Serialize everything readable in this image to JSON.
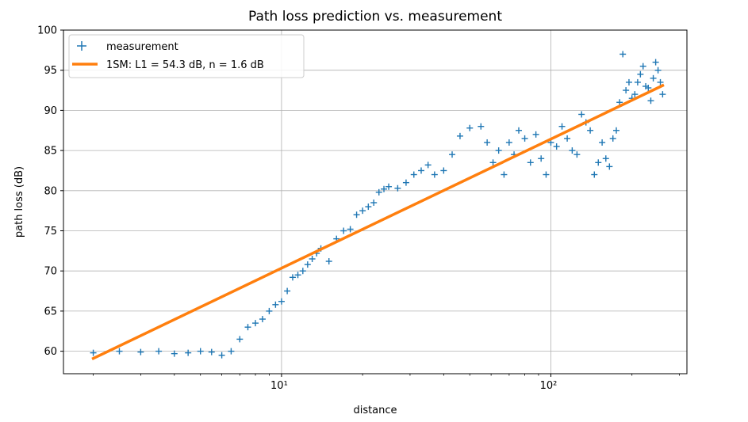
{
  "chart_data": {
    "type": "scatter",
    "title": "Path loss prediction vs. measurement",
    "xlabel": "distance",
    "ylabel": "path loss (dB)",
    "x_scale": "log",
    "xlim": [
      1.55,
      320
    ],
    "ylim": [
      57.2,
      100
    ],
    "grid": true,
    "legend_position": "top-left",
    "x_tick_labels": [
      "10¹",
      "10²"
    ],
    "x_ticks": [
      10,
      100
    ],
    "y_ticks": [
      60,
      65,
      70,
      75,
      80,
      85,
      90,
      95,
      100
    ],
    "y_tick_labels": [
      "60",
      "65",
      "70",
      "75",
      "80",
      "85",
      "90",
      "95",
      "100"
    ],
    "series": [
      {
        "name": "measurement",
        "style": "markers",
        "marker": "+",
        "color": "#1f77b4",
        "x": [
          2.0,
          2.5,
          3.0,
          3.5,
          4.0,
          4.5,
          5.0,
          5.5,
          6.0,
          6.5,
          7.0,
          7.5,
          8.0,
          8.5,
          9.0,
          9.5,
          10.0,
          10.5,
          11.0,
          11.5,
          12.0,
          12.5,
          13.0,
          13.5,
          14.0,
          15.0,
          16.0,
          17.0,
          18.0,
          19.0,
          20.0,
          21.0,
          22.0,
          23.0,
          24.0,
          25.0,
          27.0,
          29.0,
          31.0,
          33.0,
          35.0,
          37.0,
          40.0,
          43.0,
          46.0,
          50.0,
          55.0,
          58.0,
          61.0,
          64.0,
          67.0,
          70.0,
          73.0,
          76.0,
          80.0,
          84.0,
          88.0,
          92.0,
          96.0,
          100.0,
          105.0,
          110.0,
          115.0,
          120.0,
          125.0,
          130.0,
          135.0,
          140.0,
          145.0,
          150.0,
          155.0,
          160.0,
          165.0,
          170.0,
          175.0,
          180.0,
          185.0,
          190.0,
          195.0,
          200.0,
          205.0,
          210.0,
          215.0,
          220.0,
          225.0,
          230.0,
          235.0,
          240.0,
          245.0,
          250.0,
          255.0,
          260.0
        ],
        "y": [
          59.8,
          60.0,
          59.9,
          60.0,
          59.7,
          59.8,
          60.0,
          59.9,
          59.5,
          60.0,
          61.5,
          63.0,
          63.5,
          64.0,
          65.0,
          65.8,
          66.2,
          67.5,
          69.2,
          69.5,
          70.0,
          70.8,
          71.5,
          72.2,
          72.8,
          71.2,
          74.0,
          75.0,
          75.2,
          77.0,
          77.5,
          78.0,
          78.5,
          79.8,
          80.2,
          80.5,
          80.3,
          81.0,
          82.0,
          82.5,
          83.2,
          82.0,
          82.5,
          84.5,
          86.8,
          87.8,
          88.0,
          86.0,
          83.5,
          85.0,
          82.0,
          86.0,
          84.5,
          87.5,
          86.5,
          83.5,
          87.0,
          84.0,
          82.0,
          86.0,
          85.5,
          88.0,
          86.5,
          85.0,
          84.5,
          89.5,
          88.5,
          87.5,
          82.0,
          83.5,
          86.0,
          84.0,
          83.0,
          86.5,
          87.5,
          91.0,
          97.0,
          92.5,
          93.5,
          91.5,
          92.0,
          93.5,
          94.5,
          95.5,
          93.0,
          92.8,
          91.2,
          94.0,
          96.0,
          95.0,
          93.5,
          92.0
        ]
      },
      {
        "name": "1SM: L1 = 54.3 dB, n = 1.6 dB",
        "style": "line",
        "color": "#ff7f0e",
        "x": [
          2.0,
          260.0
        ],
        "y": [
          59.1,
          93.1
        ]
      }
    ]
  }
}
